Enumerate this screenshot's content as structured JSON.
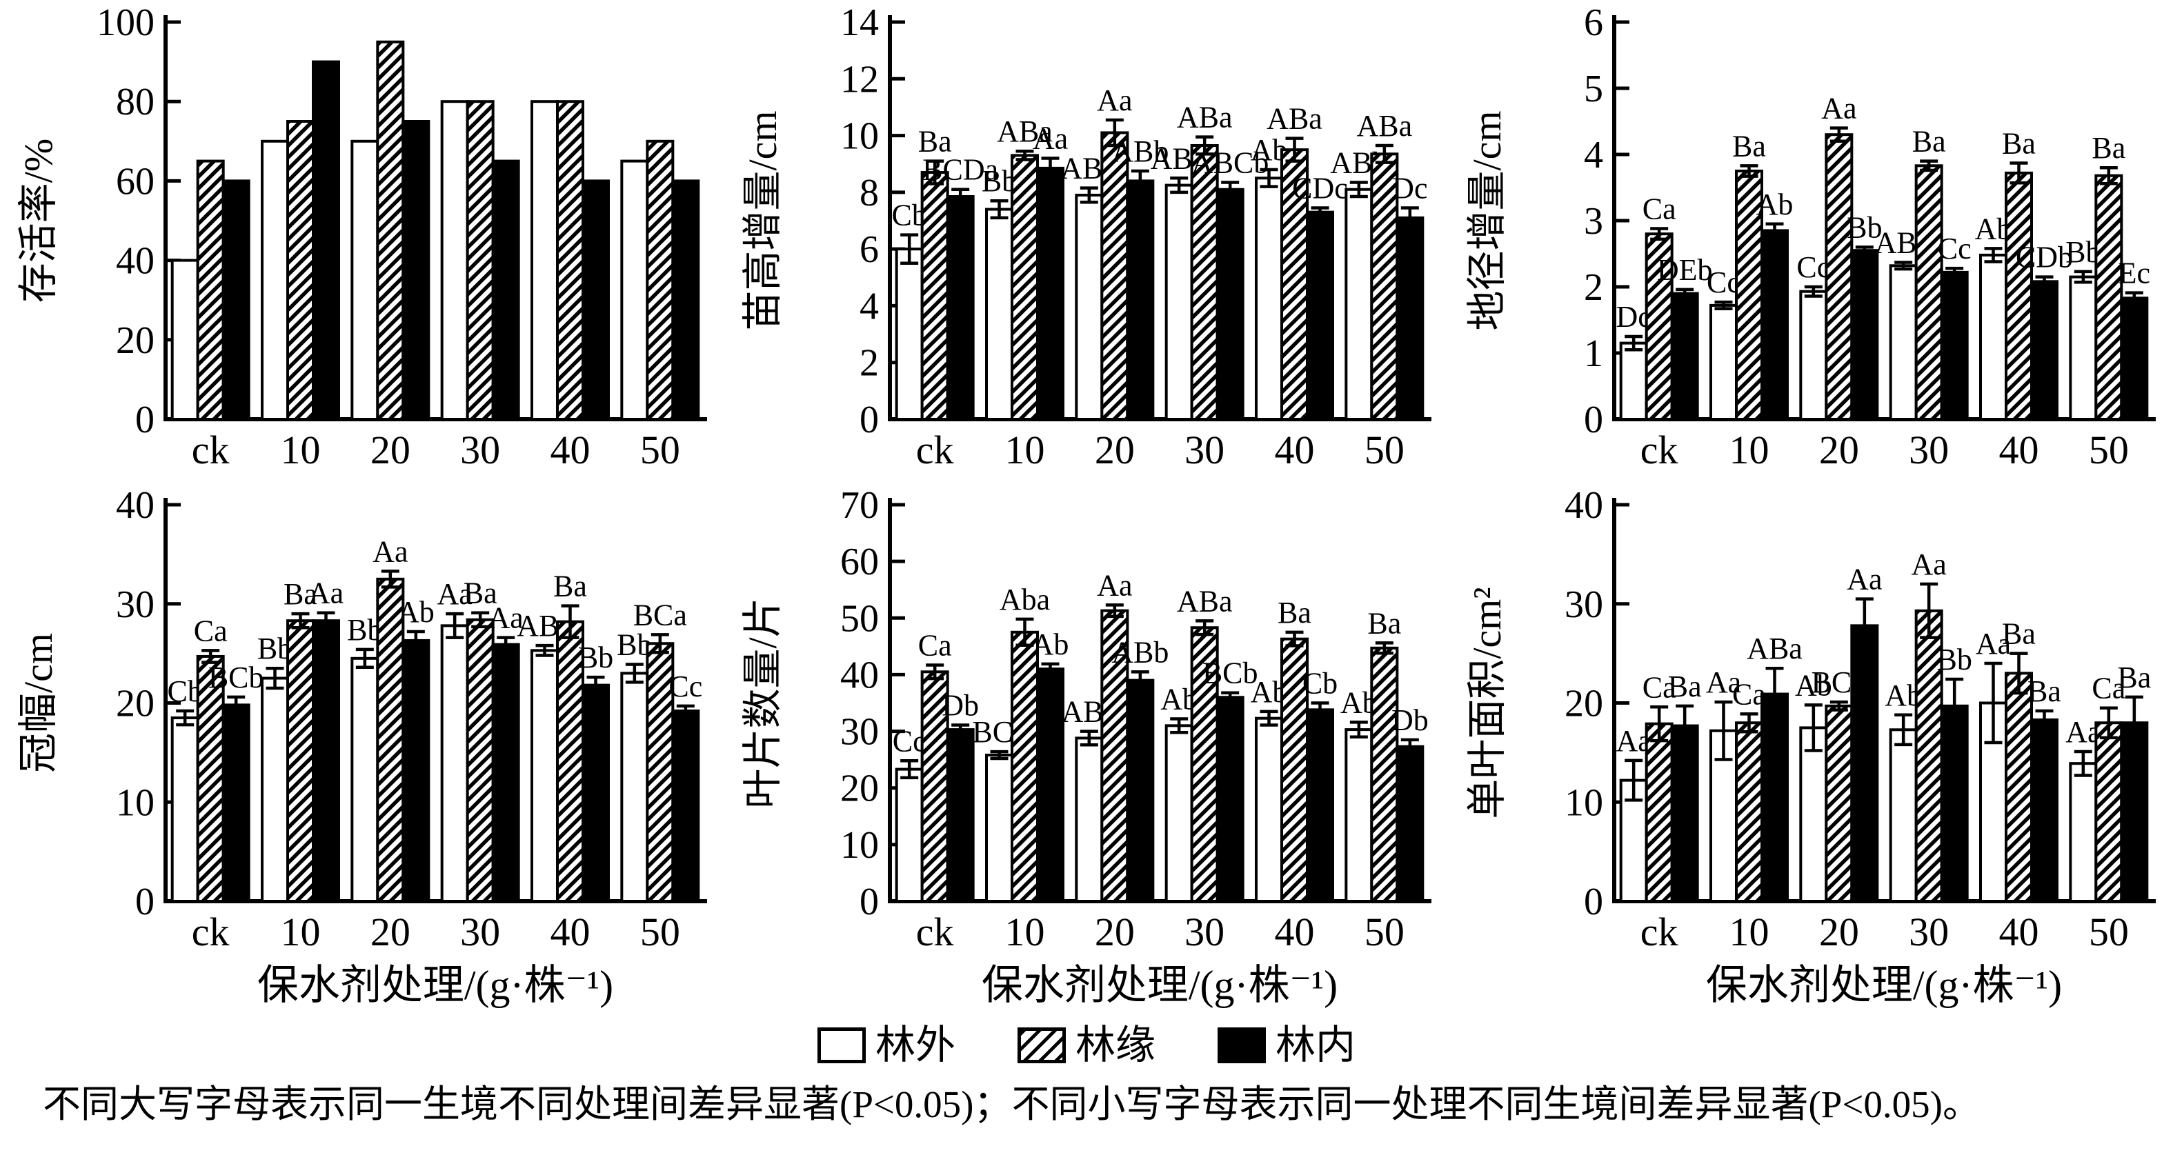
{
  "page": {
    "background": "#ffffff",
    "axis_color": "#000000",
    "caption": "不同大写字母表示同一生境不同处理间差异显著(P<0.05)；不同小写字母表示同一处理不同生境间差异显著(P<0.05)。"
  },
  "legend": {
    "items": [
      {
        "label": "林外",
        "style": "white"
      },
      {
        "label": "林缘",
        "style": "hatch"
      },
      {
        "label": "林内",
        "style": "black"
      }
    ]
  },
  "chart_data": [
    {
      "type": "bar",
      "name": "survival-rate",
      "ylabel": "存活率/%",
      "xlabel": "",
      "categories": [
        "ck",
        "10",
        "20",
        "30",
        "40",
        "50"
      ],
      "ylim": [
        0,
        100
      ],
      "ytick_step": 20,
      "grid": false,
      "series": [
        {
          "name": "林外",
          "style": "white",
          "values": [
            40,
            70,
            70,
            80,
            80,
            65
          ],
          "errors": null,
          "letters": null
        },
        {
          "name": "林缘",
          "style": "hatch",
          "values": [
            65,
            75,
            95,
            80,
            80,
            70
          ],
          "errors": null,
          "letters": null
        },
        {
          "name": "林内",
          "style": "black",
          "values": [
            60,
            90,
            75,
            65,
            60,
            60
          ],
          "errors": null,
          "letters": null
        }
      ]
    },
    {
      "type": "bar",
      "name": "seedling-height-increment",
      "ylabel": "苗高增量/cm",
      "xlabel": "",
      "categories": [
        "ck",
        "10",
        "20",
        "30",
        "40",
        "50"
      ],
      "ylim": [
        0,
        14
      ],
      "ytick_step": 2,
      "grid": false,
      "series": [
        {
          "name": "林外",
          "style": "white",
          "values": [
            6.0,
            7.4,
            7.9,
            8.25,
            8.5,
            8.1
          ],
          "errors": [
            0.5,
            0.3,
            0.25,
            0.25,
            0.3,
            0.25
          ],
          "letters": [
            "Cb",
            "Bb",
            "ABb",
            "ABb",
            "Ab",
            "ABb"
          ]
        },
        {
          "name": "林缘",
          "style": "hatch",
          "values": [
            8.7,
            9.3,
            10.1,
            9.65,
            9.5,
            9.35
          ],
          "errors": [
            0.4,
            0.15,
            0.45,
            0.3,
            0.4,
            0.3
          ],
          "letters": [
            "Ba",
            "ABa",
            "Aa",
            "ABa",
            "ABa",
            "ABa"
          ]
        },
        {
          "name": "林内",
          "style": "black",
          "values": [
            7.85,
            8.85,
            8.4,
            8.1,
            7.3,
            7.1
          ],
          "errors": [
            0.25,
            0.35,
            0.35,
            0.25,
            0.15,
            0.35
          ],
          "letters": [
            "BCDa",
            "Aa",
            "ABb",
            "ABCb",
            "CDc",
            "Dc"
          ]
        }
      ]
    },
    {
      "type": "bar",
      "name": "ground-diameter-increment",
      "ylabel": "地径增量/cm",
      "xlabel": "",
      "categories": [
        "ck",
        "10",
        "20",
        "30",
        "40",
        "50"
      ],
      "ylim": [
        0,
        6
      ],
      "ytick_step": 1,
      "grid": false,
      "series": [
        {
          "name": "林外",
          "style": "white",
          "values": [
            1.15,
            1.72,
            1.93,
            2.32,
            2.48,
            2.15
          ],
          "errors": [
            0.1,
            0.05,
            0.07,
            0.05,
            0.1,
            0.08
          ],
          "letters": [
            "Dc",
            "Cc",
            "Cc",
            "ABb",
            "Ab",
            "Bb"
          ]
        },
        {
          "name": "林缘",
          "style": "hatch",
          "values": [
            2.8,
            3.75,
            4.3,
            3.83,
            3.72,
            3.68
          ],
          "errors": [
            0.08,
            0.08,
            0.1,
            0.07,
            0.15,
            0.12
          ],
          "letters": [
            "Ca",
            "Ba",
            "Aa",
            "Ba",
            "Ba",
            "Ba"
          ]
        },
        {
          "name": "林内",
          "style": "black",
          "values": [
            1.9,
            2.85,
            2.55,
            2.22,
            2.08,
            1.83
          ],
          "errors": [
            0.06,
            0.1,
            0.05,
            0.06,
            0.07,
            0.08
          ],
          "letters": [
            "DEb",
            "Ab",
            "Bb",
            "Cc",
            "CDb",
            "Ec"
          ]
        }
      ]
    },
    {
      "type": "bar",
      "name": "crown-width",
      "ylabel": "冠幅/cm",
      "xlabel": "保水剂处理/(g·株⁻¹)",
      "categories": [
        "ck",
        "10",
        "20",
        "30",
        "40",
        "50"
      ],
      "ylim": [
        0,
        40
      ],
      "ytick_step": 10,
      "grid": false,
      "series": [
        {
          "name": "林外",
          "style": "white",
          "values": [
            18.5,
            22.5,
            24.5,
            27.8,
            25.3,
            23.0
          ],
          "errors": [
            0.7,
            1.0,
            0.9,
            1.2,
            0.5,
            0.9
          ],
          "letters": [
            "Cb",
            "Bb",
            "Bb",
            "Aa",
            "ABa",
            "Bb"
          ]
        },
        {
          "name": "林缘",
          "style": "hatch",
          "values": [
            24.7,
            28.3,
            32.5,
            28.4,
            28.2,
            26.0
          ],
          "errors": [
            0.6,
            0.7,
            0.8,
            0.7,
            1.6,
            0.9
          ],
          "letters": [
            "Ca",
            "Ba",
            "Aa",
            "Ba",
            "Ba",
            "BCa"
          ]
        },
        {
          "name": "林内",
          "style": "black",
          "values": [
            19.8,
            28.3,
            26.3,
            25.9,
            21.8,
            19.2
          ],
          "errors": [
            0.8,
            0.8,
            0.9,
            0.7,
            0.8,
            0.5
          ],
          "letters": [
            "BCb",
            "Aa",
            "Ab",
            "Aa",
            "Bb",
            "Cc"
          ]
        }
      ]
    },
    {
      "type": "bar",
      "name": "leaf-count",
      "ylabel": "叶片数量/片",
      "xlabel": "保水剂处理/(g·株⁻¹)",
      "categories": [
        "ck",
        "10",
        "20",
        "30",
        "40",
        "50"
      ],
      "ylim": [
        0,
        70
      ],
      "ytick_step": 10,
      "grid": false,
      "series": [
        {
          "name": "林外",
          "style": "white",
          "values": [
            23.3,
            25.8,
            28.8,
            31.0,
            32.3,
            30.3
          ],
          "errors": [
            1.5,
            0.6,
            1.2,
            1.2,
            1.2,
            1.3
          ],
          "letters": [
            "Cc",
            "BCc",
            "ABc",
            "Ab",
            "Ab",
            "Ab"
          ]
        },
        {
          "name": "林缘",
          "style": "hatch",
          "values": [
            40.5,
            47.5,
            51.3,
            48.3,
            46.3,
            44.7
          ],
          "errors": [
            1.2,
            2.3,
            1.0,
            1.2,
            1.2,
            0.9
          ],
          "letters": [
            "Ca",
            "Aba",
            "Aa",
            "ABa",
            "Ba",
            "Ba"
          ]
        },
        {
          "name": "林内",
          "style": "black",
          "values": [
            30.3,
            41.0,
            39.0,
            36.0,
            33.8,
            27.3
          ],
          "errors": [
            0.8,
            0.9,
            1.5,
            0.8,
            1.2,
            1.2
          ],
          "letters": [
            "Db",
            "Ab",
            "ABb",
            "BCb",
            "Cb",
            "Db"
          ]
        }
      ]
    },
    {
      "type": "bar",
      "name": "single-leaf-area",
      "ylabel": "单叶面积/cm²",
      "xlabel": "保水剂处理/(g·株⁻¹)",
      "categories": [
        "ck",
        "10",
        "20",
        "30",
        "40",
        "50"
      ],
      "ylim": [
        0,
        40
      ],
      "ytick_step": 10,
      "grid": false,
      "series": [
        {
          "name": "林外",
          "style": "white",
          "values": [
            12.2,
            17.2,
            17.5,
            17.3,
            20.0,
            13.9
          ],
          "errors": [
            2.0,
            2.9,
            2.3,
            1.5,
            4.0,
            1.2
          ],
          "letters": [
            "Aa",
            "Aa",
            "Ab",
            "Ab",
            "Aa",
            "Aa"
          ]
        },
        {
          "name": "林缘",
          "style": "hatch",
          "values": [
            17.9,
            18.0,
            19.7,
            29.3,
            23.0,
            18.0
          ],
          "errors": [
            1.7,
            0.9,
            0.4,
            2.7,
            2.0,
            1.5
          ],
          "letters": [
            "Ca",
            "Ca",
            "BCb",
            "Aa",
            "Ba",
            "Ca"
          ]
        },
        {
          "name": "林内",
          "style": "black",
          "values": [
            17.7,
            20.9,
            27.8,
            19.7,
            18.3,
            18.0
          ],
          "errors": [
            2.0,
            2.6,
            2.7,
            2.7,
            0.9,
            2.6
          ],
          "letters": [
            "Ba",
            "ABa",
            "Aa",
            "Bb",
            "Ba",
            "Ba"
          ]
        }
      ]
    }
  ]
}
